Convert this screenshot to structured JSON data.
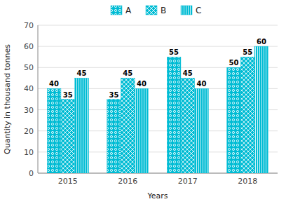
{
  "chart_data": {
    "type": "bar",
    "x_label": "Years",
    "y_label": "Quantity in thousand tonnes",
    "categories": [
      "2015",
      "2016",
      "2017",
      "2018"
    ],
    "series": [
      {
        "name": "A",
        "color": "#00BCD4",
        "values": [
          40,
          35,
          55,
          50
        ]
      },
      {
        "name": "B",
        "color": "#00BCD4",
        "values": [
          35,
          45,
          45,
          55
        ]
      },
      {
        "name": "C",
        "color": "#00BCD4",
        "values": [
          45,
          40,
          40,
          60
        ]
      }
    ],
    "ylim": [
      0,
      70
    ],
    "yticks": [
      0,
      10,
      20,
      30,
      40,
      50,
      60,
      70
    ],
    "grid": true,
    "legend": "top",
    "data_labels": true
  }
}
